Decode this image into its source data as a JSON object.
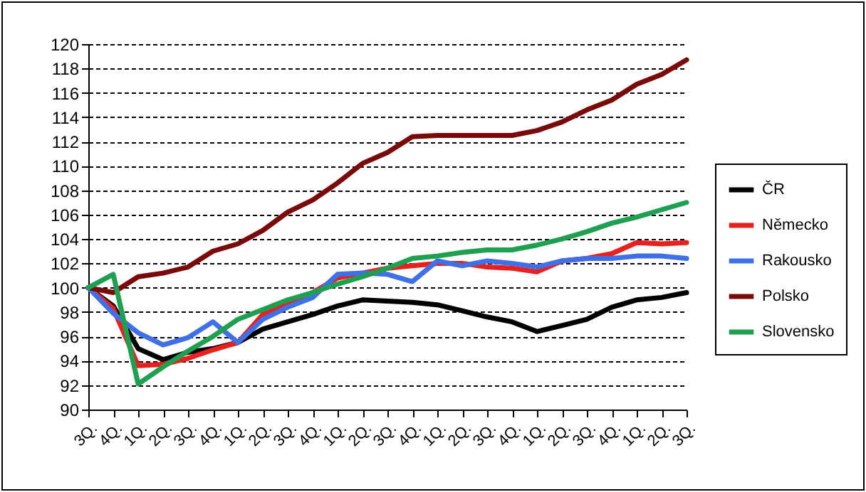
{
  "chart_data": {
    "type": "line",
    "categories": [
      "3Q.",
      "4Q.",
      "1Q.",
      "2Q.",
      "3Q.",
      "4Q.",
      "1Q.",
      "2Q.",
      "3Q.",
      "4Q.",
      "1Q.",
      "2Q.",
      "3Q.",
      "4Q.",
      "1Q.",
      "2Q.",
      "3Q.",
      "4Q.",
      "1Q.",
      "2Q.",
      "3Q.",
      "4Q.",
      "1Q.",
      "2Q.",
      "3Q."
    ],
    "series": [
      {
        "name": "ČR",
        "color": "#000000",
        "values": [
          100,
          98.5,
          95.0,
          94.1,
          94.7,
          95.0,
          95.5,
          96.6,
          97.2,
          97.8,
          98.5,
          99.0,
          98.9,
          98.8,
          98.6,
          98.1,
          97.6,
          97.2,
          96.4,
          96.9,
          97.4,
          98.4,
          99.0,
          99.2,
          99.6
        ]
      },
      {
        "name": "Německo",
        "color": "#e8201e",
        "values": [
          100,
          98.3,
          93.6,
          93.7,
          94.2,
          94.9,
          95.5,
          97.8,
          98.7,
          99.6,
          100.8,
          101.2,
          101.6,
          101.8,
          102.0,
          102.0,
          101.7,
          101.6,
          101.3,
          102.2,
          102.4,
          102.8,
          103.7,
          103.6,
          103.7
        ]
      },
      {
        "name": "Rakousko",
        "color": "#4070e8",
        "values": [
          100,
          97.9,
          96.3,
          95.3,
          95.9,
          97.2,
          95.5,
          97.4,
          98.4,
          99.2,
          101.1,
          101.2,
          101.1,
          100.5,
          102.2,
          101.8,
          102.2,
          102.0,
          101.7,
          102.2,
          102.4,
          102.4,
          102.6,
          102.6,
          102.4
        ]
      },
      {
        "name": "Polsko",
        "color": "#7a0a0a",
        "values": [
          100,
          99.6,
          100.9,
          101.2,
          101.7,
          103.0,
          103.6,
          104.7,
          106.2,
          107.2,
          108.6,
          110.2,
          111.1,
          112.4,
          112.5,
          112.5,
          112.5,
          112.5,
          112.9,
          113.6,
          114.6,
          115.4,
          116.7,
          117.5,
          118.7
        ]
      },
      {
        "name": "Slovensko",
        "color": "#1fa050",
        "values": [
          100,
          101.1,
          92.1,
          93.5,
          94.8,
          96.0,
          97.4,
          98.2,
          99.0,
          99.6,
          100.3,
          100.9,
          101.6,
          102.4,
          102.6,
          102.9,
          103.1,
          103.1,
          103.5,
          104.0,
          104.6,
          105.3,
          105.8,
          106.4,
          107.0
        ]
      }
    ],
    "ylim": [
      90,
      120
    ],
    "yticks": [
      90,
      92,
      94,
      96,
      98,
      100,
      102,
      104,
      106,
      108,
      110,
      112,
      114,
      116,
      118,
      120
    ],
    "grid": "y",
    "legend": "right",
    "line_style": "solid",
    "marker": "none"
  }
}
